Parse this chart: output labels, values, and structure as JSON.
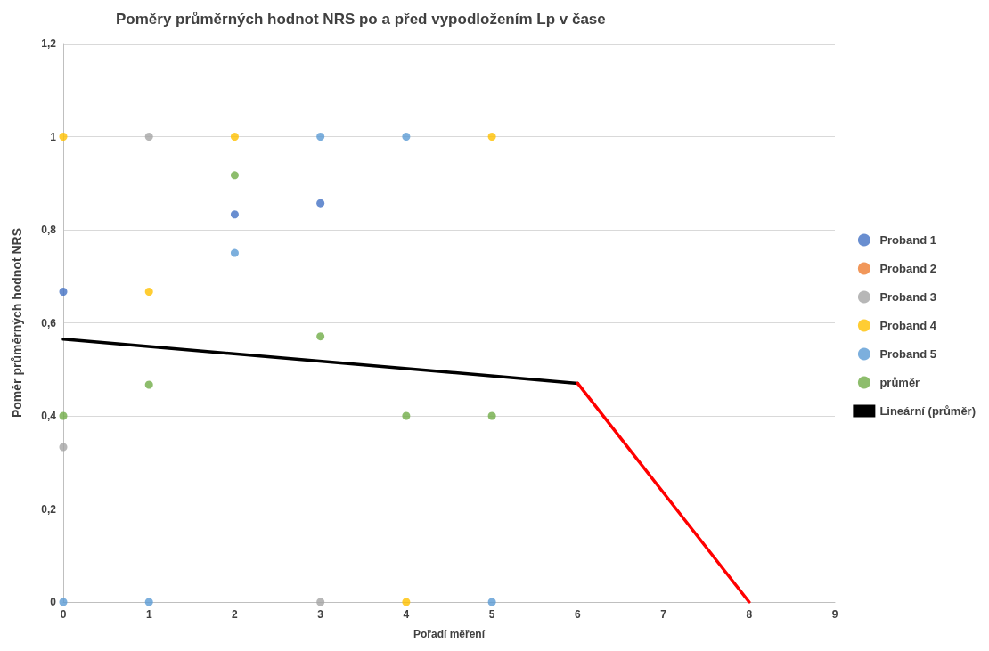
{
  "chart_data": {
    "type": "scatter",
    "title": "Poměry průměrných hodnot NRS po a před vypodložením Lp v čase",
    "xlabel": "Pořadí měření",
    "ylabel": "Poměr průměrných hodnot NRS",
    "x": [
      0,
      1,
      2,
      3,
      4,
      5
    ],
    "xlim": [
      0,
      9
    ],
    "xticks": [
      0,
      1,
      2,
      3,
      4,
      5,
      6,
      7,
      8,
      9
    ],
    "ylim": [
      0,
      1.2
    ],
    "yticks": [
      0,
      {
        "value": 0.2,
        "label": "0,2"
      },
      {
        "value": 0.4,
        "label": "0,4"
      },
      {
        "value": 0.6,
        "label": "0,6"
      },
      {
        "value": 0.8,
        "label": "0,8"
      },
      1,
      {
        "value": 1.2,
        "label": "1,2"
      }
    ],
    "grid": "y",
    "legend": "right",
    "marker": "circle",
    "series": [
      {
        "name": "Proband 1",
        "color": "#4472c4",
        "values": [
          0.667,
          null,
          0.833,
          0.857,
          null,
          null
        ]
      },
      {
        "name": "Proband 2",
        "color": "#ed7d31",
        "values": [
          null,
          null,
          null,
          null,
          null,
          null
        ]
      },
      {
        "name": "Proband 3",
        "color": "#a5a5a5",
        "values": [
          0.333,
          1,
          null,
          0,
          null,
          null
        ]
      },
      {
        "name": "Proband 4",
        "color": "#ffc000",
        "values": [
          1,
          0.667,
          1,
          null,
          0,
          1
        ]
      },
      {
        "name": "Proband 5",
        "color": "#5b9bd5",
        "values": [
          0,
          0,
          0.75,
          1,
          1,
          0
        ]
      },
      {
        "name": "průměr",
        "color": "#70ad47",
        "values": [
          0.4,
          0.467,
          0.917,
          0.571,
          0.4,
          0.4
        ]
      },
      {
        "name": "Lineární (průměr)",
        "type": "line",
        "color": "#000000",
        "x": [
          0,
          6
        ],
        "values": [
          0.565,
          0.47
        ],
        "marker": "none"
      },
      {
        "type": "line",
        "color": "#ff0000",
        "x": [
          6,
          8
        ],
        "values": [
          0.47,
          0
        ],
        "marker": "none"
      }
    ]
  }
}
